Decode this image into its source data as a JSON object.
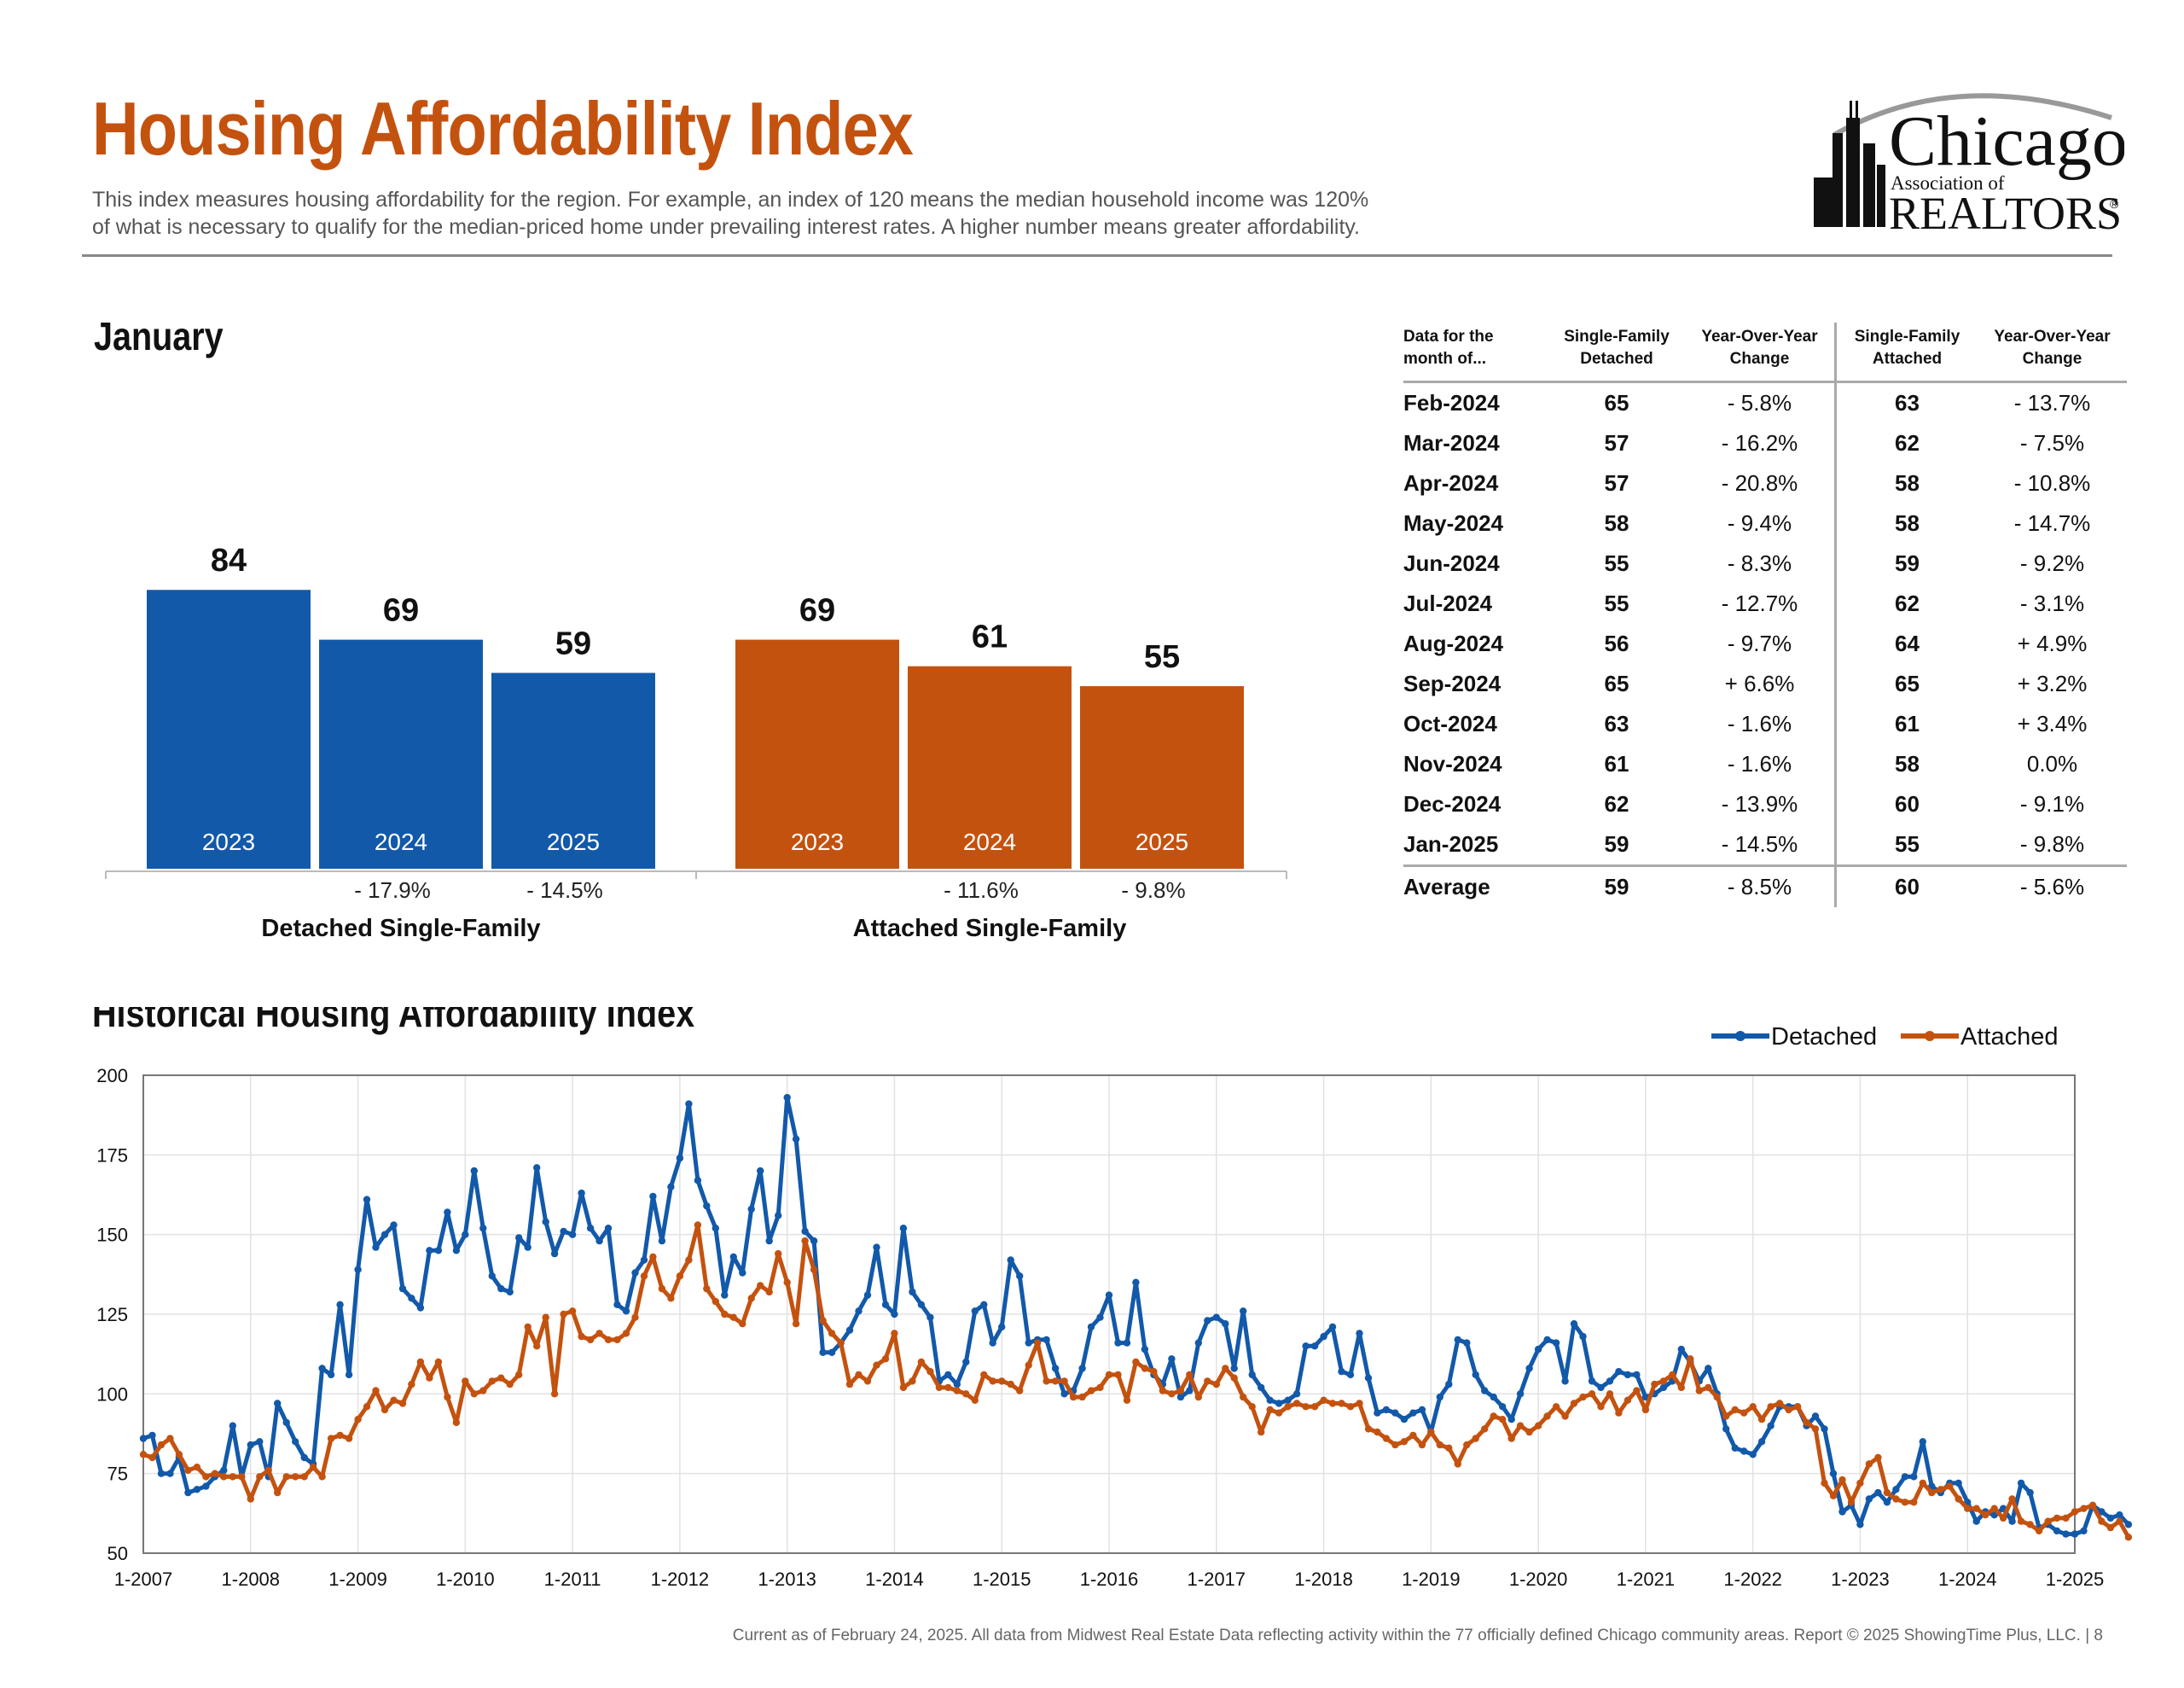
{
  "header": {
    "title": "Housing Affordability Index",
    "subtitle_line1": "This index measures housing affordability for the region. For example, an index of 120 means the median household income was 120%",
    "subtitle_line2": "of what is necessary to qualify for the median-priced home under prevailing interest rates. A higher number means greater affordability."
  },
  "logo": {
    "line1": "Chicago",
    "line2": "Association of",
    "line3": "REALTORS",
    "mark": "®"
  },
  "colors": {
    "detached": "#1259aa",
    "attached": "#c4520f",
    "title": "#c4520f"
  },
  "bars_section": {
    "heading": "January"
  },
  "table": {
    "headers": [
      [
        "Data for the",
        "month of..."
      ],
      [
        "Single-Family",
        "Detached"
      ],
      [
        "Year-Over-Year",
        "Change"
      ],
      [
        "Single-Family",
        "Attached"
      ],
      [
        "Year-Over-Year",
        "Change"
      ]
    ],
    "rows": [
      [
        "Feb-2024",
        "65",
        "- 5.8%",
        "63",
        "- 13.7%"
      ],
      [
        "Mar-2024",
        "57",
        "- 16.2%",
        "62",
        "- 7.5%"
      ],
      [
        "Apr-2024",
        "57",
        "- 20.8%",
        "58",
        "- 10.8%"
      ],
      [
        "May-2024",
        "58",
        "- 9.4%",
        "58",
        "- 14.7%"
      ],
      [
        "Jun-2024",
        "55",
        "- 8.3%",
        "59",
        "- 9.2%"
      ],
      [
        "Jul-2024",
        "55",
        "- 12.7%",
        "62",
        "- 3.1%"
      ],
      [
        "Aug-2024",
        "56",
        "- 9.7%",
        "64",
        "+ 4.9%"
      ],
      [
        "Sep-2024",
        "65",
        "+ 6.6%",
        "65",
        "+ 3.2%"
      ],
      [
        "Oct-2024",
        "63",
        "- 1.6%",
        "61",
        "+ 3.4%"
      ],
      [
        "Nov-2024",
        "61",
        "- 1.6%",
        "58",
        "0.0%"
      ],
      [
        "Dec-2024",
        "62",
        "- 13.9%",
        "60",
        "- 9.1%"
      ],
      [
        "Jan-2025",
        "59",
        "- 14.5%",
        "55",
        "- 9.8%"
      ]
    ],
    "average": [
      "Average",
      "59",
      "- 8.5%",
      "60",
      "- 5.6%"
    ]
  },
  "history_section": {
    "heading": "Historical Housing Affordability Index"
  },
  "footer": {
    "text": "Current as of February 24, 2025.  All data from Midwest Real Estate Data reflecting activity within the 77 officially defined Chicago community areas. Report © 2025 ShowingTime Plus, LLC.  |  8"
  },
  "chart_data": [
    {
      "type": "bar",
      "title": "January",
      "groups": [
        {
          "name": "Detached Single-Family",
          "categories": [
            "2023",
            "2024",
            "2025"
          ],
          "values": [
            84,
            69,
            59
          ],
          "changes": [
            "",
            "- 17.9%",
            "- 14.5%"
          ]
        },
        {
          "name": "Attached Single-Family",
          "categories": [
            "2023",
            "2024",
            "2025"
          ],
          "values": [
            69,
            61,
            55
          ],
          "changes": [
            "",
            "- 11.6%",
            "- 9.8%"
          ]
        }
      ]
    },
    {
      "type": "line",
      "title": "Historical Housing Affordability Index",
      "legend_position": "top-right",
      "x_start": "1-2007",
      "x_step": "1 month",
      "x_ticks": [
        "1-2007",
        "1-2008",
        "1-2009",
        "1-2010",
        "1-2011",
        "1-2012",
        "1-2013",
        "1-2014",
        "1-2015",
        "1-2016",
        "1-2017",
        "1-2018",
        "1-2019",
        "1-2020",
        "1-2021",
        "1-2022",
        "1-2023",
        "1-2024",
        "1-2025"
      ],
      "ylim": [
        50,
        200
      ],
      "y_ticks": [
        50,
        75,
        100,
        125,
        150,
        175,
        200
      ],
      "grid": true,
      "series": [
        {
          "name": "Detached",
          "values": [
            86,
            87,
            75,
            75,
            80,
            69,
            70,
            71,
            74,
            76,
            90,
            74,
            84,
            85,
            74,
            97,
            91,
            85,
            80,
            78,
            108,
            106,
            128,
            106,
            139,
            161,
            146,
            150,
            153,
            133,
            130,
            127,
            145,
            145,
            157,
            145,
            150,
            170,
            152,
            137,
            133,
            132,
            149,
            146,
            171,
            154,
            144,
            151,
            150,
            163,
            152,
            148,
            152,
            128,
            126,
            138,
            142,
            162,
            148,
            165,
            174,
            191,
            167,
            159,
            152,
            131,
            143,
            138,
            158,
            170,
            148,
            156,
            193,
            180,
            151,
            148,
            113,
            113,
            116,
            120,
            126,
            131,
            146,
            128,
            125,
            152,
            132,
            128,
            124,
            104,
            106,
            103,
            110,
            126,
            128,
            116,
            121,
            142,
            137,
            116,
            117,
            117,
            108,
            100,
            101,
            108,
            121,
            124,
            131,
            116,
            116,
            135,
            114,
            106,
            103,
            111,
            99,
            101,
            116,
            123,
            124,
            122,
            108,
            126,
            106,
            102,
            98,
            97,
            98,
            100,
            115,
            115,
            118,
            121,
            107,
            106,
            119,
            105,
            94,
            95,
            94,
            92,
            94,
            95,
            88,
            99,
            103,
            117,
            116,
            106,
            101,
            99,
            96,
            92,
            100,
            108,
            114,
            117,
            116,
            104,
            122,
            118,
            104,
            102,
            104,
            107,
            106,
            106,
            99,
            100,
            102,
            104,
            114,
            110,
            104,
            108,
            100,
            89,
            83,
            82,
            81,
            85,
            90,
            96,
            96,
            96,
            90,
            93,
            89,
            75,
            63,
            65,
            59,
            67,
            69,
            66,
            70,
            74,
            74,
            85,
            71,
            69,
            72,
            72,
            66,
            60,
            63,
            62,
            64,
            60,
            72,
            69,
            58,
            59,
            57,
            56,
            56,
            57,
            65,
            63,
            61,
            62,
            59
          ]
        },
        {
          "name": "Attached",
          "values": [
            81,
            80,
            84,
            86,
            81,
            76,
            77,
            74,
            75,
            74,
            74,
            74,
            67,
            74,
            76,
            69,
            74,
            74,
            74,
            77,
            74,
            86,
            87,
            86,
            92,
            96,
            101,
            95,
            98,
            97,
            103,
            110,
            105,
            110,
            99,
            91,
            104,
            100,
            101,
            104,
            105,
            103,
            106,
            121,
            115,
            124,
            100,
            125,
            126,
            118,
            117,
            119,
            117,
            117,
            119,
            124,
            137,
            143,
            133,
            130,
            137,
            142,
            153,
            133,
            129,
            125,
            124,
            122,
            130,
            134,
            132,
            144,
            135,
            122,
            148,
            139,
            123,
            119,
            116,
            103,
            106,
            104,
            109,
            111,
            119,
            102,
            104,
            110,
            107,
            102,
            102,
            101,
            100,
            98,
            106,
            104,
            104,
            103,
            101,
            109,
            116,
            104,
            104,
            104,
            99,
            99,
            101,
            102,
            106,
            106,
            98,
            110,
            108,
            107,
            101,
            100,
            101,
            106,
            99,
            104,
            103,
            108,
            105,
            99,
            96,
            88,
            95,
            94,
            96,
            97,
            96,
            96,
            98,
            97,
            97,
            96,
            97,
            89,
            88,
            86,
            84,
            85,
            87,
            84,
            88,
            84,
            83,
            78,
            84,
            86,
            89,
            93,
            92,
            86,
            90,
            88,
            90,
            93,
            96,
            93,
            97,
            99,
            100,
            96,
            100,
            94,
            98,
            101,
            95,
            103,
            104,
            106,
            102,
            111,
            101,
            102,
            99,
            93,
            95,
            94,
            96,
            92,
            96,
            97,
            95,
            96,
            91,
            89,
            72,
            68,
            73,
            66,
            72,
            78,
            80,
            69,
            67,
            66,
            66,
            72,
            69,
            70,
            71,
            67,
            64,
            64,
            62,
            64,
            61,
            67,
            60,
            59,
            57,
            60,
            61,
            61,
            63,
            64,
            65,
            60,
            58,
            60,
            55
          ]
        }
      ]
    }
  ]
}
